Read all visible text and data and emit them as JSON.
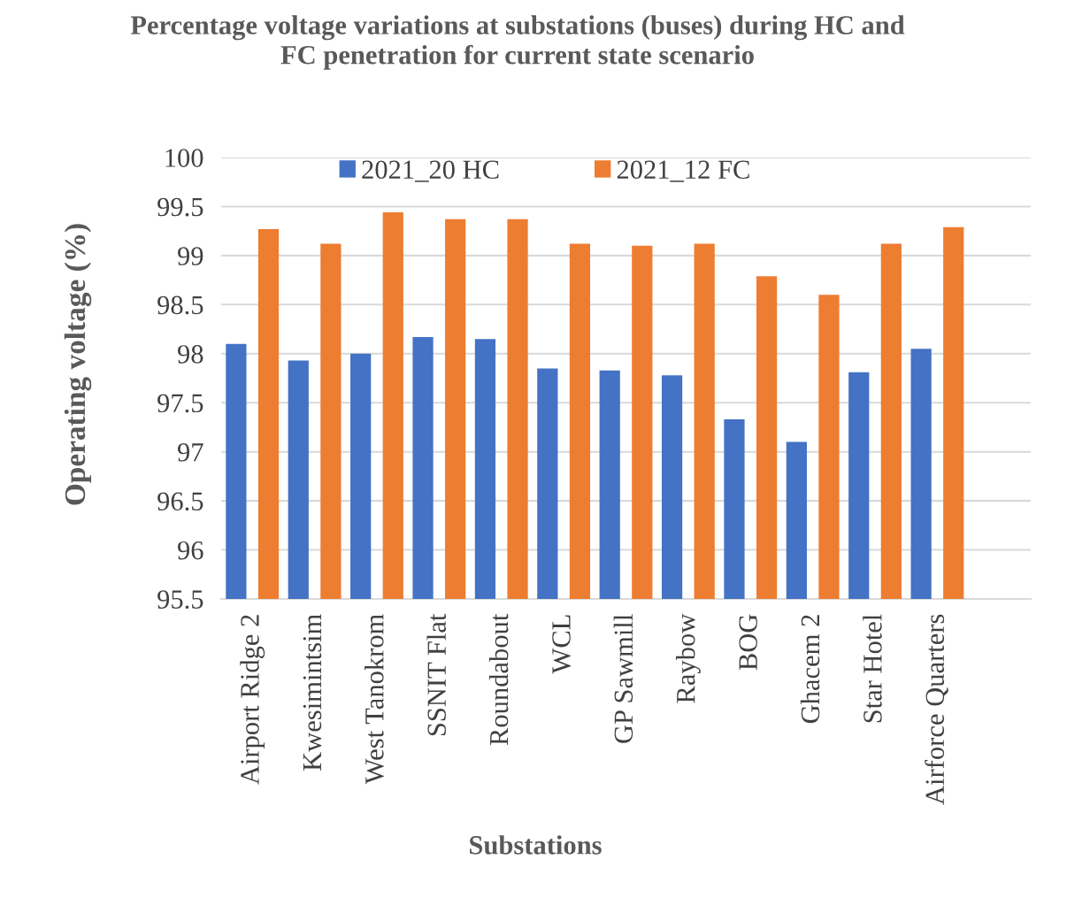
{
  "chart_data": {
    "type": "bar",
    "title": "Percentage voltage variations at substations (buses) during HC and\nFC penetration for current state scenario",
    "xlabel": "Substations",
    "ylabel": "Operating voltage (%)",
    "categories": [
      "Airport Ridge 2",
      "Kwesimintsim",
      "West Tanokrom",
      "SSNIT Flat",
      "Roundabout",
      "WCL",
      "GP Sawmill",
      "Raybow",
      "BOG",
      "Ghacem 2",
      "Star Hotel",
      "Airforce Quarters",
      null
    ],
    "series": [
      {
        "name": "2021_20 HC",
        "color": "#4472c4",
        "values": [
          98.1,
          97.93,
          98.0,
          98.17,
          98.15,
          97.85,
          97.83,
          97.78,
          97.33,
          97.1,
          97.81,
          98.05,
          null
        ]
      },
      {
        "name": "2021_12 FC",
        "color": "#ed7d31",
        "values": [
          99.27,
          99.12,
          99.44,
          99.37,
          99.37,
          99.12,
          99.1,
          99.12,
          98.79,
          98.6,
          99.12,
          99.29,
          null
        ]
      }
    ],
    "ylim": [
      95.5,
      100
    ],
    "yticks": [
      {
        "value": 95.5,
        "label": "95.5"
      },
      {
        "value": 96,
        "label": "96"
      },
      {
        "value": 96.5,
        "label": "96.5"
      },
      {
        "value": 97,
        "label": "97"
      },
      {
        "value": 97.5,
        "label": "97.5"
      },
      {
        "value": 98,
        "label": "98"
      },
      {
        "value": 98.5,
        "label": "98.5"
      },
      {
        "value": 99,
        "label": "99"
      },
      {
        "value": 99.5,
        "label": "99.5"
      },
      {
        "value": 100,
        "label": "100"
      }
    ],
    "grid": "y",
    "legend": "top"
  }
}
